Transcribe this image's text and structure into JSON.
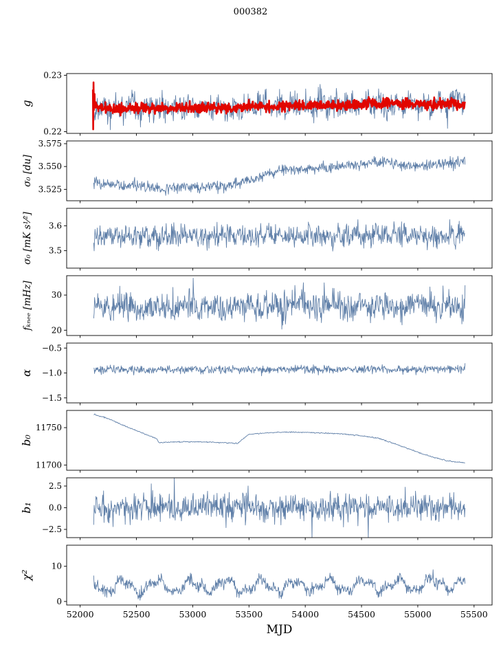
{
  "title": "000382",
  "x_axis": {
    "lim": [
      51880,
      55660
    ],
    "ticks": [
      52000,
      52500,
      53000,
      53500,
      54000,
      54500,
      55000,
      55500
    ],
    "tick_labels": [
      "52000",
      "52500",
      "53000",
      "53500",
      "54000",
      "54500",
      "55000",
      "55500"
    ],
    "label": "MJD"
  },
  "colors": {
    "line_blue": "#5f7fa8",
    "line_red": "#e10600",
    "axis": "#000000"
  },
  "chart_data": [
    {
      "type": "line",
      "ylabel": "g",
      "ylim": [
        0.2197,
        0.2303
      ],
      "yticks": [
        0.22,
        0.23
      ],
      "ytick_labels": [
        "0.22",
        "0.23"
      ],
      "series": [
        {
          "name": "g-raw",
          "color": "#5f7fa8",
          "width": 0.9,
          "dt": 4,
          "x_range": [
            52120,
            55420
          ],
          "trend": [
            [
              52120,
              0.2243
            ],
            [
              52600,
              0.2242
            ],
            [
              53100,
              0.2243
            ],
            [
              53600,
              0.2245
            ],
            [
              54100,
              0.2246
            ],
            [
              54600,
              0.2248
            ],
            [
              55000,
              0.2248
            ],
            [
              55330,
              0.225
            ],
            [
              55370,
              0.227
            ],
            [
              55400,
              0.2252
            ],
            [
              55420,
              0.2258
            ]
          ],
          "noise": 0.0011,
          "wave": {
            "amp": 0.0006,
            "period": 130
          },
          "spike_prob": 0.012,
          "spike_amp": [
            -0.0028,
            0.0008
          ]
        },
        {
          "name": "g-smoothed",
          "color": "#e10600",
          "width": 2.6,
          "dt": 3,
          "x_range": [
            52113,
            55420
          ],
          "trend": [
            [
              52113,
              0.2282
            ],
            [
              52116,
              0.221
            ],
            [
              52119,
              0.2286
            ],
            [
              52123,
              0.2222
            ],
            [
              52128,
              0.2268
            ],
            [
              52134,
              0.2238
            ],
            [
              52142,
              0.225
            ],
            [
              52160,
              0.2242
            ],
            [
              52400,
              0.2241
            ],
            [
              52800,
              0.2242
            ],
            [
              53200,
              0.2242
            ],
            [
              53600,
              0.2244
            ],
            [
              54000,
              0.2246
            ],
            [
              54400,
              0.2249
            ],
            [
              54800,
              0.225
            ],
            [
              55100,
              0.2248
            ],
            [
              55250,
              0.225
            ],
            [
              55420,
              0.2246
            ]
          ],
          "noise": 0.00045
        }
      ]
    },
    {
      "type": "line",
      "ylabel": "σ₀ [du]",
      "ylim": [
        3.5125,
        3.578
      ],
      "yticks": [
        3.525,
        3.55,
        3.575
      ],
      "ytick_labels": [
        "3.525",
        "3.550",
        "3.575"
      ],
      "series": [
        {
          "name": "sigma0-du",
          "color": "#5f7fa8",
          "width": 0.9,
          "dt": 4,
          "x_range": [
            52120,
            55420
          ],
          "trend": [
            [
              52120,
              3.532
            ],
            [
              52300,
              3.53
            ],
            [
              52600,
              3.528
            ],
            [
              52700,
              3.527
            ],
            [
              52750,
              3.523
            ],
            [
              52800,
              3.528
            ],
            [
              53000,
              3.527
            ],
            [
              53200,
              3.528
            ],
            [
              53350,
              3.53
            ],
            [
              53500,
              3.535
            ],
            [
              53650,
              3.541
            ],
            [
              53800,
              3.546
            ],
            [
              53950,
              3.548
            ],
            [
              54100,
              3.547
            ],
            [
              54250,
              3.55
            ],
            [
              54400,
              3.551
            ],
            [
              54550,
              3.553
            ],
            [
              54700,
              3.556
            ],
            [
              54850,
              3.552
            ],
            [
              55000,
              3.55
            ],
            [
              55150,
              3.553
            ],
            [
              55300,
              3.554
            ],
            [
              55420,
              3.557
            ]
          ],
          "noise": 0.003,
          "spike_prob": 0.006,
          "spike_amp": [
            -0.01,
            0.004
          ]
        }
      ]
    },
    {
      "type": "line",
      "ylabel": "σ₀ [mK s¹⁄²]",
      "ylim": [
        3.43,
        3.67
      ],
      "yticks": [
        3.5,
        3.6
      ],
      "ytick_labels": [
        "3.5",
        "3.6"
      ],
      "series": [
        {
          "name": "sigma0-mk",
          "color": "#5f7fa8",
          "width": 0.9,
          "dt": 4,
          "x_range": [
            52120,
            55420
          ],
          "trend": [
            [
              52120,
              3.56
            ],
            [
              52500,
              3.558
            ],
            [
              53000,
              3.561
            ],
            [
              53500,
              3.559
            ],
            [
              54000,
              3.561
            ],
            [
              54500,
              3.562
            ],
            [
              54650,
              3.568
            ],
            [
              54800,
              3.56
            ],
            [
              55420,
              3.559
            ]
          ],
          "noise": 0.021,
          "wave": {
            "amp": 0.012,
            "period": 85
          },
          "spike_prob": 0.008,
          "spike_amp": [
            -0.03,
            0.07
          ]
        }
      ]
    },
    {
      "type": "line",
      "ylabel": "fₖₙₑₑ [mHz]",
      "ylim": [
        18.5,
        35.5
      ],
      "yticks": [
        20,
        30
      ],
      "ytick_labels": [
        "20",
        "30"
      ],
      "series": [
        {
          "name": "fknee",
          "color": "#5f7fa8",
          "width": 0.9,
          "dt": 4,
          "x_range": [
            52120,
            55420
          ],
          "trend": [
            [
              52120,
              26.3
            ],
            [
              53000,
              26.6
            ],
            [
              54000,
              26.8
            ],
            [
              55420,
              27.2
            ]
          ],
          "noise": 1.9,
          "wave": {
            "amp": 0.7,
            "period": 260
          },
          "spike_prob": 0.045,
          "spike_amp": [
            -4.5,
            6.0
          ],
          "clamp": [
            20.3,
            34.8
          ]
        }
      ]
    },
    {
      "type": "line",
      "ylabel": "α",
      "ylim": [
        -1.6,
        -0.4
      ],
      "yticks": [
        -0.5,
        -1.0,
        -1.5
      ],
      "ytick_labels": [
        "−0.5",
        "−1.0",
        "−1.5"
      ],
      "series": [
        {
          "name": "alpha",
          "color": "#5f7fa8",
          "width": 0.9,
          "dt": 4,
          "x_range": [
            52120,
            55420
          ],
          "trend": [
            [
              52120,
              -0.935
            ],
            [
              55420,
              -0.928
            ]
          ],
          "noise": 0.038,
          "spike_prob": 0.02,
          "spike_amp": [
            -0.1,
            0.1
          ]
        }
      ]
    },
    {
      "type": "line",
      "ylabel": "b₀",
      "ylim": [
        11693,
        11773
      ],
      "yticks": [
        11700,
        11750
      ],
      "ytick_labels": [
        "11700",
        "11750"
      ],
      "series": [
        {
          "name": "b0",
          "color": "#5f7fa8",
          "width": 0.9,
          "dt": 5,
          "x_range": [
            52120,
            55420
          ],
          "trend": [
            [
              52120,
              11768
            ],
            [
              52250,
              11762
            ],
            [
              52400,
              11752
            ],
            [
              52550,
              11743
            ],
            [
              52680,
              11735
            ],
            [
              52700,
              11730
            ],
            [
              52850,
              11731
            ],
            [
              53050,
              11731
            ],
            [
              53250,
              11730
            ],
            [
              53400,
              11729
            ],
            [
              53430,
              11733
            ],
            [
              53500,
              11741
            ],
            [
              53650,
              11743
            ],
            [
              53800,
              11744
            ],
            [
              53950,
              11744
            ],
            [
              54100,
              11743
            ],
            [
              54300,
              11742
            ],
            [
              54500,
              11739
            ],
            [
              54650,
              11736
            ],
            [
              54800,
              11728
            ],
            [
              54950,
              11720
            ],
            [
              55100,
              11712
            ],
            [
              55250,
              11706
            ],
            [
              55350,
              11704
            ],
            [
              55420,
              11703
            ]
          ],
          "noise": 0.35
        }
      ]
    },
    {
      "type": "line",
      "ylabel": "b₁",
      "ylim": [
        -3.45,
        3.45
      ],
      "yticks": [
        -2.5,
        0.0,
        2.5
      ],
      "ytick_labels": [
        "−2.5",
        "0.0",
        "2.5"
      ],
      "series": [
        {
          "name": "b1",
          "color": "#5f7fa8",
          "width": 0.9,
          "dt": 4,
          "x_range": [
            52120,
            55420
          ],
          "trend": [
            [
              52120,
              0
            ],
            [
              55420,
              0
            ]
          ],
          "noise": 0.75,
          "spike_prob": 0.04,
          "spike_amp": [
            -3.3,
            3.3
          ],
          "clamp": [
            -3.5,
            3.5
          ]
        }
      ]
    },
    {
      "type": "line",
      "ylabel": "χ²",
      "ylim": [
        -1.0,
        16.0
      ],
      "yticks": [
        0,
        10
      ],
      "ytick_labels": [
        "0",
        "10"
      ],
      "series": [
        {
          "name": "chi2",
          "color": "#5f7fa8",
          "width": 0.9,
          "dt": 4,
          "x_range": [
            52120,
            55420
          ],
          "trend": [
            [
              52120,
              4.2
            ],
            [
              53500,
              4.4
            ],
            [
              54500,
              4.5
            ],
            [
              55420,
              5.0
            ]
          ],
          "noise": 0.8,
          "wave": {
            "amp": 1.55,
            "period": 305
          },
          "spike_prob": 0.02,
          "spike_amp": [
            -1.5,
            2.5
          ],
          "clamp": [
            0.35,
            11.5
          ]
        }
      ]
    }
  ]
}
